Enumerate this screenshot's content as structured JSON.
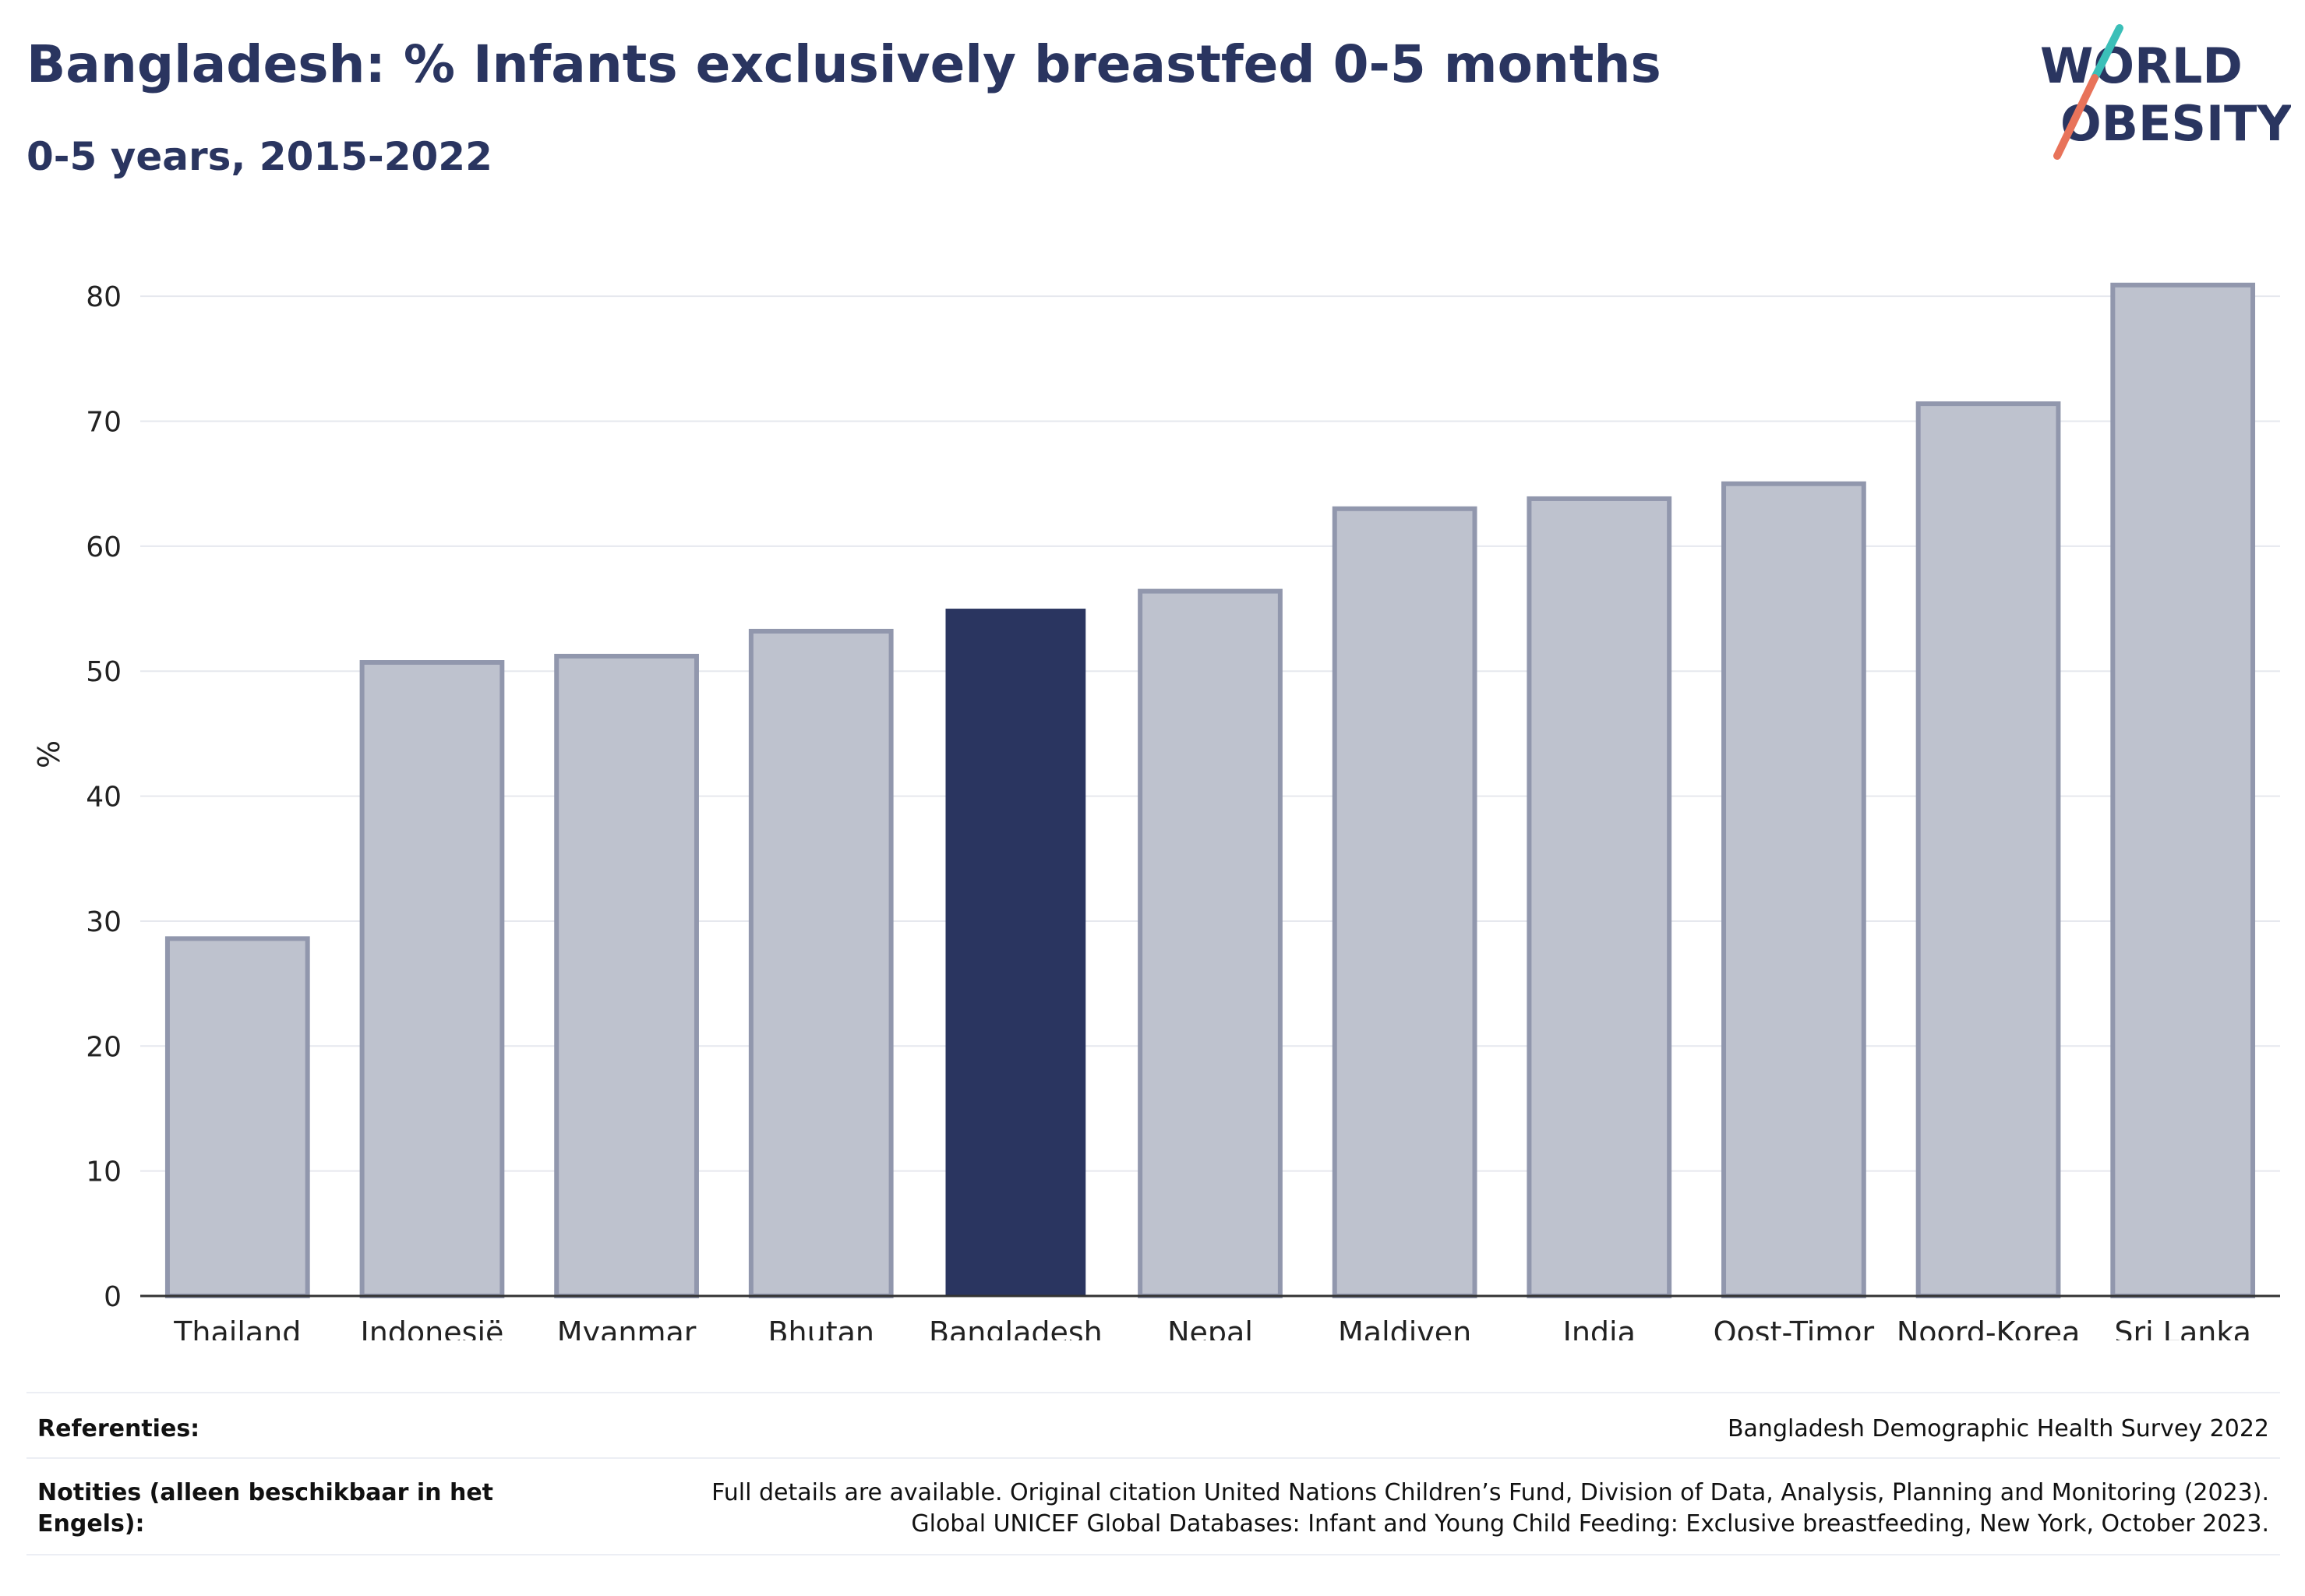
{
  "header": {
    "title": "Bangladesh: % Infants exclusively breastfed 0-5 months",
    "subtitle": "0-5 years, 2015-2022"
  },
  "logo": {
    "line1": "WORLD",
    "line2": "OBESITY",
    "accent_teal": "#3bbfb8",
    "accent_coral": "#e8735a"
  },
  "colors": {
    "highlight_bar": "#2a3560",
    "other_bar_fill": "#bec2ce",
    "other_bar_stroke": "#9197ad",
    "grid": "#e6e8ee",
    "axis": "#333333"
  },
  "chart_data": {
    "type": "bar",
    "title": "Bangladesh: % Infants exclusively breastfed 0-5 months",
    "subtitle": "0-5 years, 2015-2022",
    "xlabel": "",
    "ylabel": "%",
    "ylim": [
      0,
      85
    ],
    "yticks": [
      0,
      10,
      20,
      30,
      40,
      50,
      60,
      70,
      80
    ],
    "grid": true,
    "highlight": "Bangladesh",
    "categories": [
      "Thailand",
      "Indonesië",
      "Myanmar",
      "Bhutan",
      "Bangladesh",
      "Nepal",
      "Maldiven",
      "India",
      "Oost-Timor",
      "Noord-Korea",
      "Sri Lanka"
    ],
    "values": [
      28.6,
      50.7,
      51.2,
      53.2,
      55.0,
      56.4,
      63.0,
      63.8,
      65.0,
      71.4,
      80.9
    ]
  },
  "footer": {
    "references_label": "Referenties:",
    "references_value": "Bangladesh Demographic Health Survey 2022",
    "notes_label": "Notities (alleen beschikbaar in het Engels):",
    "notes_line1": "Full details are available. Original citation United Nations Children’s Fund, Division of Data, Analysis, Planning and Monitoring (2023).",
    "notes_line2": "Global UNICEF Global Databases: Infant and Young Child Feeding: Exclusive breastfeeding, New York, October 2023."
  }
}
